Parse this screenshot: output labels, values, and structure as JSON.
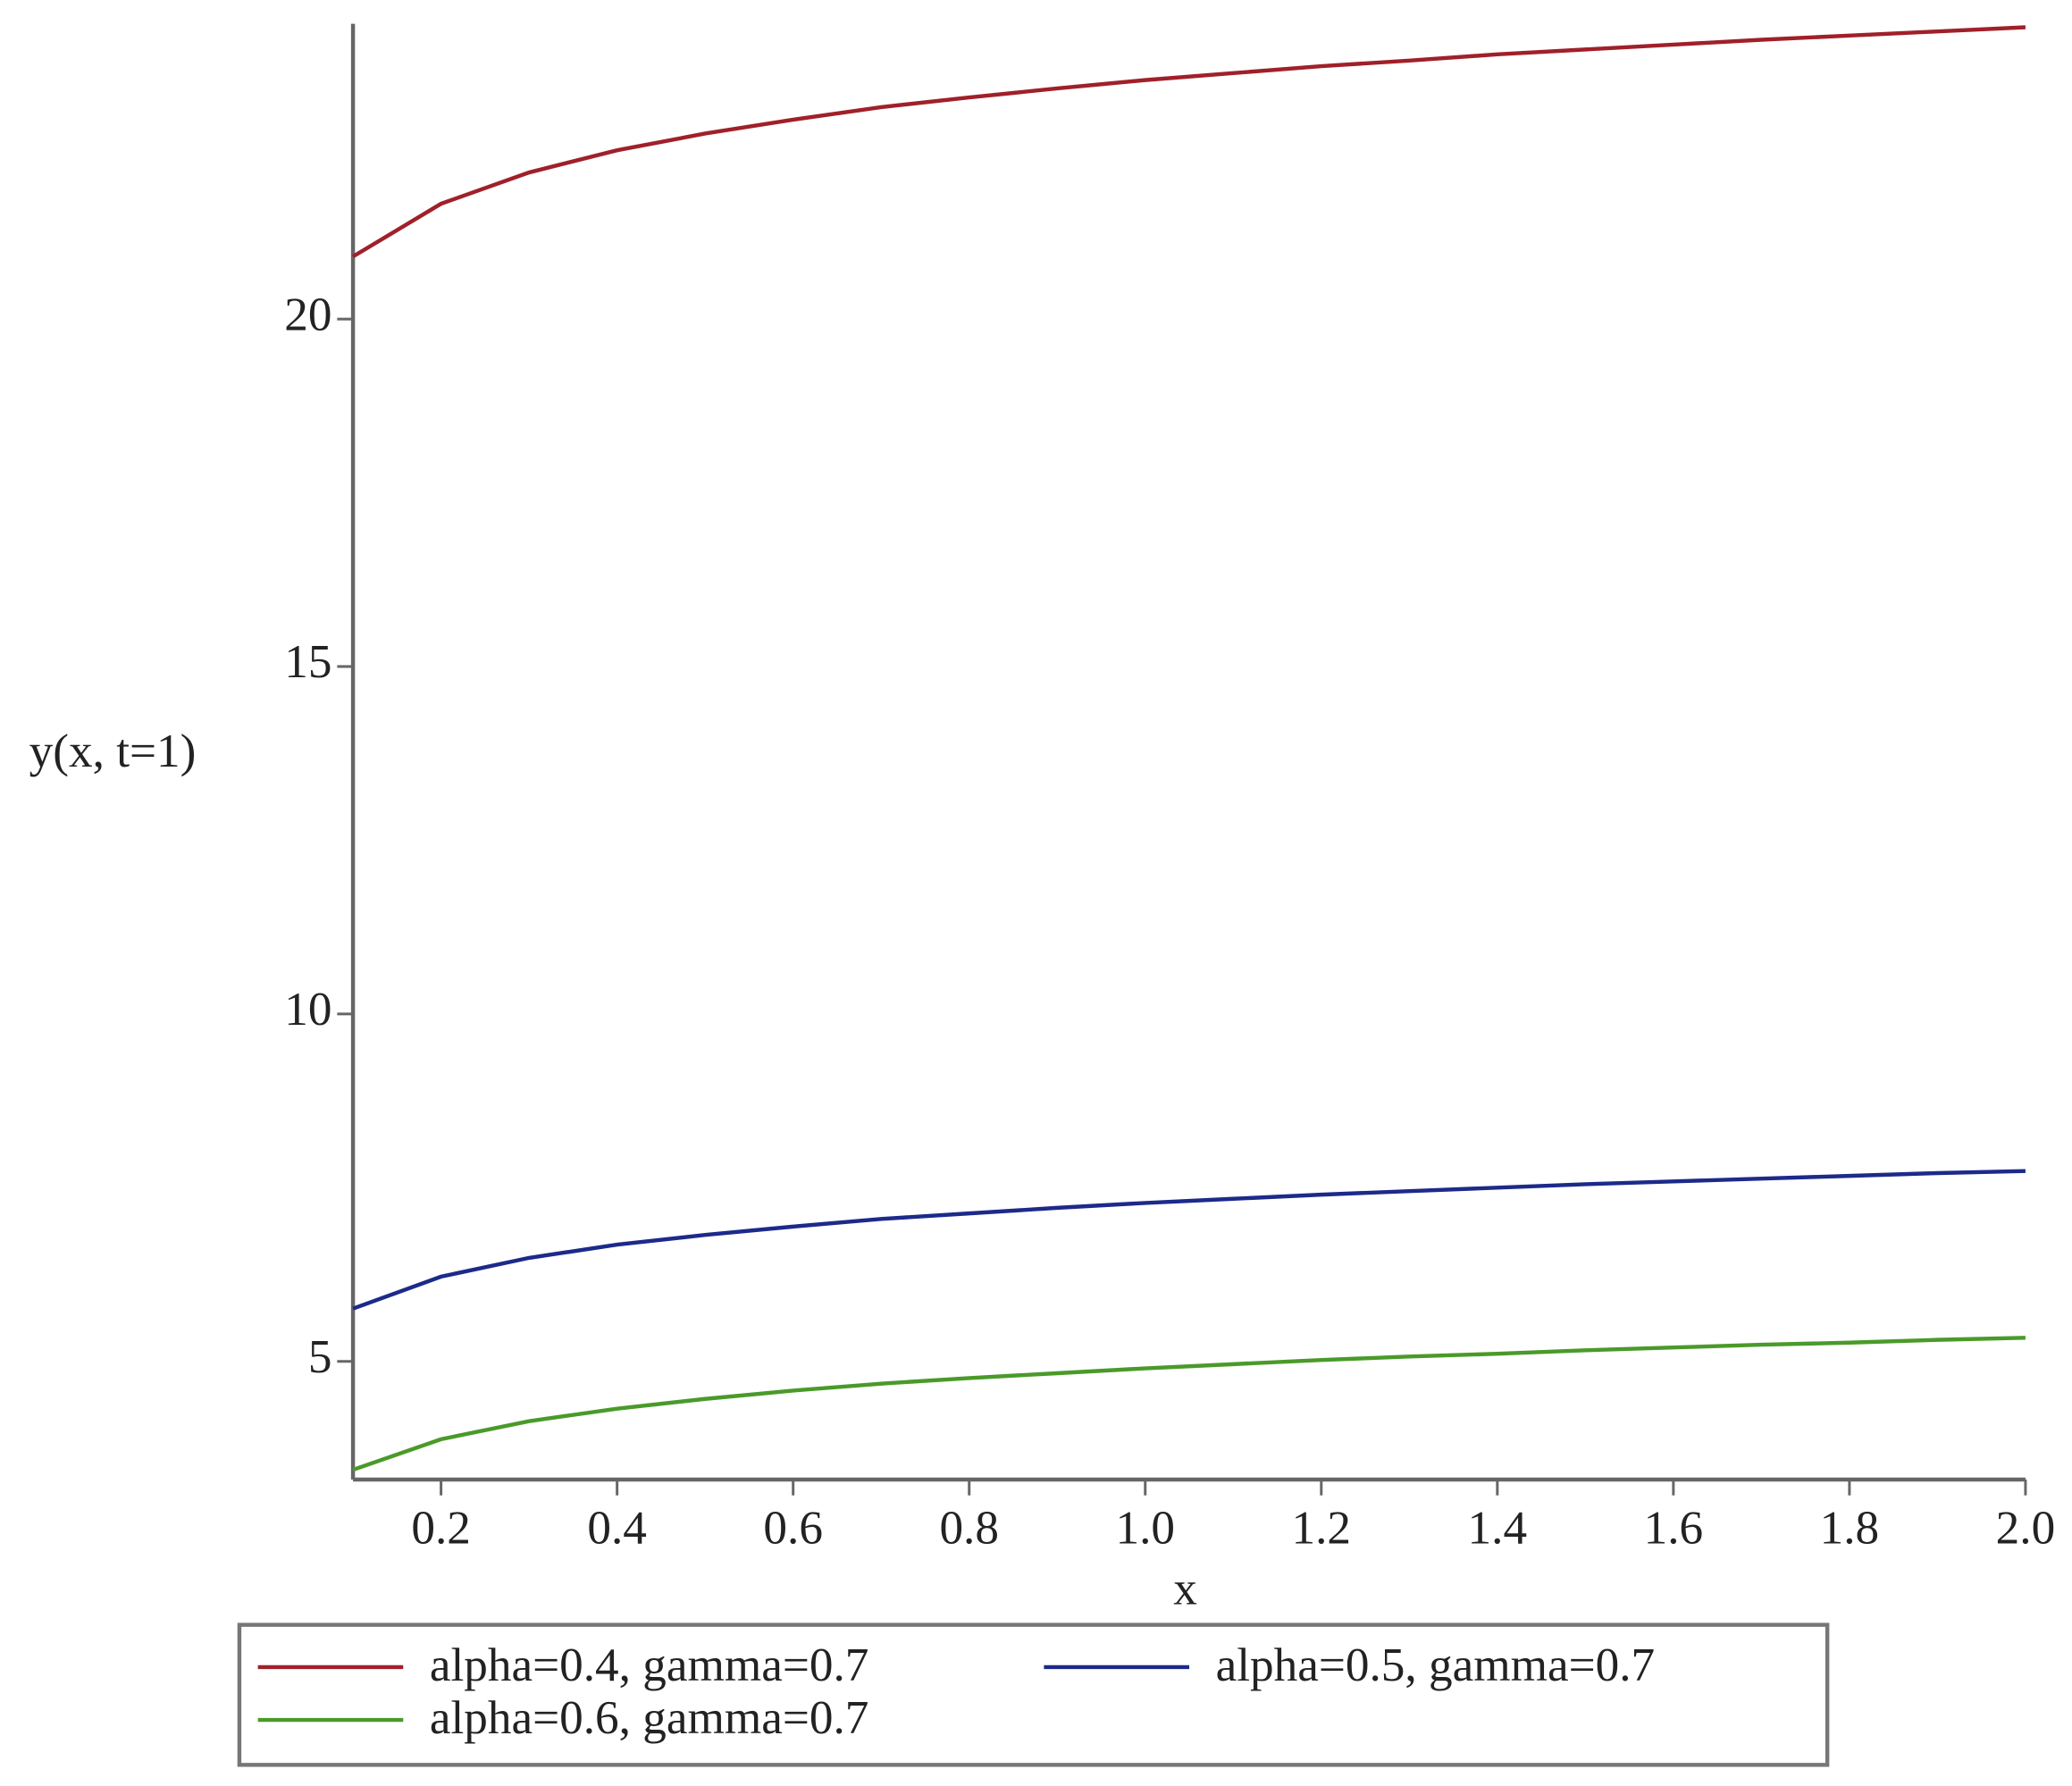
{
  "chart_data": {
    "type": "line",
    "x_label": "x",
    "y_label": "y(x, t=1)",
    "x": [
      0.1,
      0.2,
      0.3,
      0.4,
      0.5,
      0.6,
      0.7,
      0.8,
      0.9,
      1.0,
      1.1,
      1.2,
      1.3,
      1.4,
      1.5,
      1.6,
      1.7,
      1.8,
      1.9,
      2.0
    ],
    "series": [
      {
        "name": "alpha=0.4, gamma=0.7",
        "color": "#a0202a",
        "values": [
          20.9,
          21.66,
          22.11,
          22.43,
          22.67,
          22.87,
          23.05,
          23.19,
          23.32,
          23.44,
          23.54,
          23.64,
          23.72,
          23.81,
          23.88,
          23.95,
          24.02,
          24.08,
          24.14,
          24.2
        ]
      },
      {
        "name": "alpha=0.5, gamma=0.7",
        "color": "#1c2a8a",
        "values": [
          5.76,
          6.22,
          6.49,
          6.68,
          6.82,
          6.94,
          7.05,
          7.13,
          7.21,
          7.28,
          7.34,
          7.4,
          7.45,
          7.5,
          7.55,
          7.59,
          7.63,
          7.67,
          7.71,
          7.74
        ]
      },
      {
        "name": "alpha=0.6, gamma=0.7",
        "color": "#4a9a2a",
        "values": [
          3.44,
          3.88,
          4.14,
          4.32,
          4.46,
          4.58,
          4.68,
          4.76,
          4.83,
          4.9,
          4.96,
          5.02,
          5.07,
          5.11,
          5.16,
          5.2,
          5.24,
          5.27,
          5.31,
          5.34
        ]
      }
    ],
    "xlim": [
      0.1,
      2.0
    ],
    "xticks": [
      0.2,
      0.4,
      0.6,
      0.8,
      {
        "value": 1,
        "label": "1.0"
      },
      1.2,
      1.4,
      1.6,
      1.8,
      {
        "value": 2,
        "label": "2.0"
      }
    ],
    "ylim": [
      3.3,
      24.25
    ],
    "yticks": [
      5,
      10,
      15,
      20
    ],
    "grid": false,
    "legend": "bottom"
  }
}
